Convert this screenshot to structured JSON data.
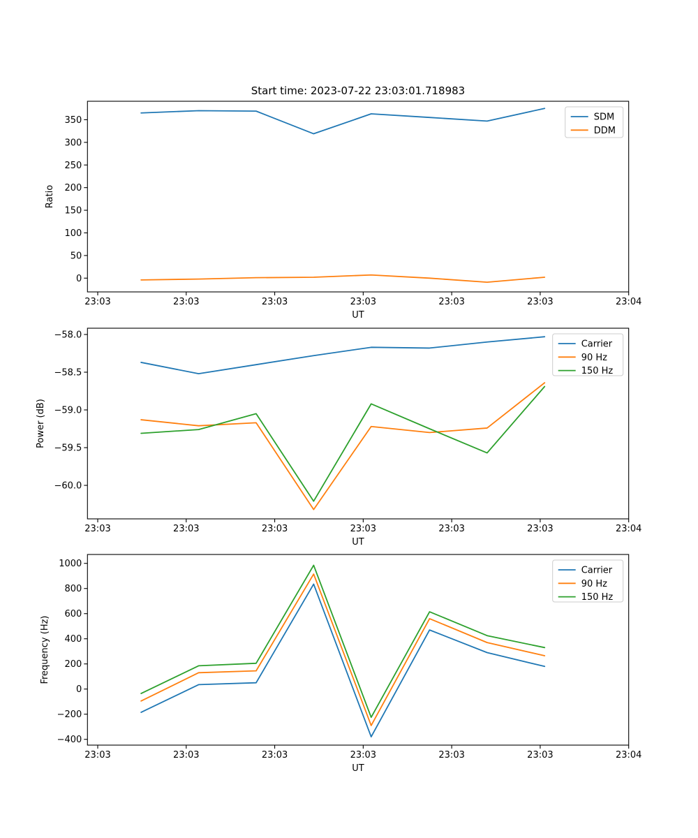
{
  "figure_title": "Start time: 2023-07-22 23:03:01.718983",
  "colors": {
    "blue": "#1f77b4",
    "orange": "#ff7f0e",
    "green": "#2ca02c"
  },
  "chart_data": [
    {
      "type": "line",
      "title": "Start time: 2023-07-22 23:03:01.718983",
      "xlabel": "UT",
      "ylabel": "Ratio",
      "x_seconds_after_23_03_00": [
        4.9,
        11.4,
        17.9,
        24.4,
        30.9,
        37.5,
        44.0,
        50.5
      ],
      "xlim_seconds": [
        -1.16,
        60.0
      ],
      "xticks": {
        "seconds": [
          0,
          10,
          20,
          30,
          40,
          50,
          60
        ],
        "labels": [
          "23:03",
          "23:03",
          "23:03",
          "23:03",
          "23:03",
          "23:03",
          "23:04"
        ]
      },
      "ylim": [
        -30.4,
        390.8
      ],
      "yticks": {
        "values": [
          0,
          50,
          100,
          150,
          200,
          250,
          300,
          350
        ],
        "labels": [
          "0",
          "50",
          "100",
          "150",
          "200",
          "250",
          "300",
          "350"
        ]
      },
      "grid": false,
      "legend": {
        "position": "upper right",
        "entries": [
          "SDM",
          "DDM"
        ]
      },
      "series": [
        {
          "name": "SDM",
          "color_key": "blue",
          "values": [
            365,
            370,
            369,
            319,
            363,
            355,
            347,
            375
          ]
        },
        {
          "name": "DDM",
          "color_key": "orange",
          "values": [
            -4,
            -2,
            1,
            2,
            7,
            0,
            -9,
            2
          ]
        }
      ]
    },
    {
      "type": "line",
      "title": "",
      "xlabel": "UT",
      "ylabel": "Power (dB)",
      "x_seconds_after_23_03_00": [
        4.9,
        11.4,
        17.9,
        24.4,
        30.9,
        37.5,
        44.0,
        50.5
      ],
      "xlim_seconds": [
        -1.16,
        60.0
      ],
      "xticks": {
        "seconds": [
          0,
          10,
          20,
          30,
          40,
          50,
          60
        ],
        "labels": [
          "23:03",
          "23:03",
          "23:03",
          "23:03",
          "23:03",
          "23:03",
          "23:04"
        ]
      },
      "ylim": [
        -60.444,
        -57.917
      ],
      "yticks": {
        "values": [
          -60.0,
          -59.5,
          -59.0,
          -58.5,
          -58.0
        ],
        "labels": [
          "−60.0",
          "−59.5",
          "−59.0",
          "−58.5",
          "−58.0"
        ]
      },
      "grid": false,
      "legend": {
        "position": "upper right",
        "entries": [
          "Carrier",
          "90 Hz",
          "150 Hz"
        ]
      },
      "series": [
        {
          "name": "Carrier",
          "color_key": "blue",
          "values": [
            -58.37,
            -58.52,
            -58.4,
            -58.28,
            -58.17,
            -58.18,
            -58.1,
            -58.03
          ]
        },
        {
          "name": "90 Hz",
          "color_key": "orange",
          "values": [
            -59.13,
            -59.21,
            -59.17,
            -60.32,
            -59.22,
            -59.3,
            -59.24,
            -58.64
          ]
        },
        {
          "name": "150 Hz",
          "color_key": "green",
          "values": [
            -59.31,
            -59.26,
            -59.05,
            -60.21,
            -58.92,
            -59.25,
            -59.57,
            -58.69
          ]
        }
      ]
    },
    {
      "type": "line",
      "title": "",
      "xlabel": "UT",
      "ylabel": "Frequency (Hz)",
      "x_seconds_after_23_03_00": [
        4.9,
        11.4,
        17.9,
        24.4,
        30.9,
        37.5,
        44.0,
        50.5
      ],
      "xlim_seconds": [
        -1.16,
        60.0
      ],
      "xticks": {
        "seconds": [
          0,
          10,
          20,
          30,
          40,
          50,
          60
        ],
        "labels": [
          "23:03",
          "23:03",
          "23:03",
          "23:03",
          "23:03",
          "23:03",
          "23:04"
        ]
      },
      "ylim": [
        -446.1,
        1070.7
      ],
      "yticks": {
        "values": [
          -400,
          -200,
          0,
          200,
          400,
          600,
          800,
          1000
        ],
        "labels": [
          "−400",
          "−200",
          "0",
          "200",
          "400",
          "600",
          "800",
          "1000"
        ]
      },
      "grid": false,
      "legend": {
        "position": "upper right",
        "entries": [
          "Carrier",
          "90 Hz",
          "150 Hz"
        ]
      },
      "series": [
        {
          "name": "Carrier",
          "color_key": "blue",
          "values": [
            -185,
            35,
            50,
            835,
            -380,
            470,
            290,
            180
          ]
        },
        {
          "name": "90 Hz",
          "color_key": "orange",
          "values": [
            -95,
            130,
            145,
            915,
            -290,
            560,
            370,
            265
          ]
        },
        {
          "name": "150 Hz",
          "color_key": "green",
          "values": [
            -35,
            185,
            205,
            985,
            -225,
            615,
            425,
            330
          ]
        }
      ]
    }
  ]
}
